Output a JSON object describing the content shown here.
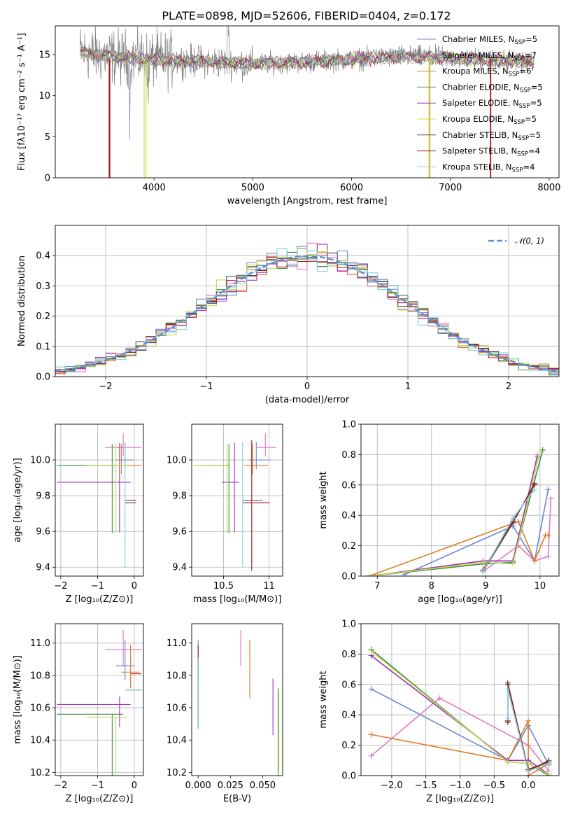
{
  "figure_title": "PLATE=0898, MJD=52606, FIBERID=0404, z=0.172",
  "colors": {
    "Chabrier MILES": "#6a87d6",
    "Salpeter MILES": "#e377c2",
    "Kroupa MILES": "#e07b25",
    "Chabrier ELODIE": "#3f8a4f",
    "Salpeter ELODIE": "#9b2fb5",
    "Kroupa ELODIE": "#c5df4f",
    "Chabrier STELIB": "#505050",
    "Salpeter STELIB": "#a01717",
    "Kroupa STELIB": "#7fd1d8",
    "data": "#808080",
    "normal": "#5b8fd9"
  },
  "chart_data": [
    {
      "id": "spectrum",
      "type": "line",
      "title": "PLATE=0898, MJD=52606, FIBERID=0404, z=0.172",
      "xlabel": "wavelength [Angstrom, rest frame]",
      "ylabel": "Flux [fλ10⁻¹⁷ erg cm⁻² s⁻¹ A⁻¹]",
      "xlim": [
        3000,
        8100
      ],
      "ylim": [
        0,
        18.5
      ],
      "xticks": [
        4000,
        5000,
        6000,
        7000,
        8000
      ],
      "yticks": [
        0,
        5,
        10,
        15
      ],
      "legend_position": "upper-right",
      "series": [
        {
          "name": "Chabrier MILES",
          "nssp": "5"
        },
        {
          "name": "Salpeter MILES",
          "nssp": "7"
        },
        {
          "name": "Kroupa MILES",
          "nssp": "6"
        },
        {
          "name": "Chabrier ELODIE",
          "nssp": "5"
        },
        {
          "name": "Salpeter ELODIE",
          "nssp": "5"
        },
        {
          "name": "Kroupa ELODIE",
          "nssp": "5"
        },
        {
          "name": "Chabrier STELIB",
          "nssp": "5"
        },
        {
          "name": "Salpeter STELIB",
          "nssp": "4"
        },
        {
          "name": "Kroupa STELIB",
          "nssp": "4"
        }
      ],
      "drops": [
        {
          "series": "Salpeter STELIB",
          "x": [
            3545,
            3553
          ],
          "note": "model drops to zero below ~3550"
        },
        {
          "series": "Kroupa ELODIE",
          "x": [
            3900,
            3920
          ]
        },
        {
          "series": "Kroupa MILES",
          "x": [
            6785,
            6790
          ]
        },
        {
          "series": "Kroupa ELODIE",
          "x": [
            6790,
            6795
          ]
        },
        {
          "series": "Salpeter STELIB",
          "x": [
            7405,
            7410
          ]
        }
      ],
      "data_range": [
        3250,
        7850
      ],
      "continuum": [
        [
          3250,
          15.3
        ],
        [
          3600,
          14.7
        ],
        [
          4000,
          14.4
        ],
        [
          4500,
          14.2
        ],
        [
          5000,
          13.9
        ],
        [
          5500,
          14.1
        ],
        [
          6000,
          14.4
        ],
        [
          6500,
          14.8
        ],
        [
          7000,
          14.6
        ],
        [
          7500,
          14.3
        ],
        [
          7850,
          14.2
        ]
      ]
    },
    {
      "id": "residual-histogram",
      "type": "step",
      "xlabel": "(data-model)/error",
      "ylabel": "Normed distribution",
      "xlim": [
        -2.5,
        2.5
      ],
      "ylim": [
        0,
        0.5
      ],
      "xticks": [
        -2,
        -1,
        0,
        1,
        2
      ],
      "yticks": [
        0,
        0.1,
        0.2,
        0.3,
        0.4
      ],
      "grid": true,
      "bin_width": 0.1,
      "legend": [
        {
          "label": "𝒩(0, 1)",
          "style": "dashed"
        }
      ],
      "legend_position": "upper-right"
    },
    {
      "id": "age-vs-Z",
      "type": "errorbar",
      "xlabel": "Z [log₁₀(Z/Z⊙)]",
      "ylabel": "age  [log₁₀(age/yr)]",
      "xlim": [
        -2.15,
        0.25
      ],
      "ylim": [
        9.35,
        10.2
      ],
      "xticks": [
        -2,
        -1,
        0
      ],
      "yticks": [
        9.4,
        9.6,
        9.8,
        10.0
      ],
      "grid": true,
      "points": [
        {
          "series": "Chabrier MILES",
          "x": -0.25,
          "xerr": [
            0.25,
            0.25
          ],
          "y": 10.0,
          "yerr": [
            0.05,
            0.1
          ]
        },
        {
          "series": "Salpeter MILES",
          "x": -0.3,
          "xerr": [
            0.5,
            0.5
          ],
          "y": 10.07,
          "yerr": [
            0.05,
            0.08
          ]
        },
        {
          "series": "Kroupa MILES",
          "x": -0.35,
          "xerr": [
            0.55,
            0.55
          ],
          "y": 9.97,
          "yerr": [
            0.05,
            0.12
          ]
        },
        {
          "series": "Chabrier ELODIE",
          "x": -0.6,
          "xerr": [
            1.5,
            0.3
          ],
          "y": 9.97,
          "yerr": [
            0.38,
            0.12
          ]
        },
        {
          "series": "Salpeter ELODIE",
          "x": -0.4,
          "xerr": [
            1.7,
            0.3
          ],
          "y": 9.875,
          "yerr": [
            0.28,
            0.22
          ]
        },
        {
          "series": "Kroupa ELODIE",
          "x": -0.5,
          "xerr": [
            0.8,
            0.3
          ],
          "y": 9.97,
          "yerr": [
            0.38,
            0.12
          ]
        },
        {
          "series": "Chabrier STELIB",
          "x": -0.25,
          "xerr": [
            0.0,
            0.3
          ],
          "y": 9.775,
          "yerr": [
            0.0,
            0.0
          ]
        },
        {
          "series": "Salpeter STELIB",
          "x": -0.25,
          "xerr": [
            0.0,
            0.3
          ],
          "y": 9.76,
          "yerr": [
            0.0,
            0.0
          ]
        },
        {
          "series": "Kroupa STELIB",
          "x": -0.25,
          "xerr": [
            0.0,
            0.0
          ],
          "y": 9.7,
          "yerr": [
            0.3,
            0.4
          ]
        }
      ]
    },
    {
      "id": "age-vs-mass",
      "type": "errorbar",
      "xlabel": "mass [log₁₀(M/M⊙)]",
      "ylabel": "",
      "xlim": [
        10.15,
        11.15
      ],
      "ylim": [
        9.35,
        10.2
      ],
      "xticks": [
        10.5,
        11.0
      ],
      "yticks": [
        9.4,
        9.6,
        9.8,
        10.0
      ],
      "grid": true,
      "points": [
        {
          "series": "Chabrier MILES",
          "x": 10.86,
          "xerr": [
            0.09,
            0.16
          ],
          "y": 10.0,
          "yerr": [
            0.05,
            0.1
          ]
        },
        {
          "series": "Salpeter MILES",
          "x": 10.96,
          "xerr": [
            0.1,
            0.12
          ],
          "y": 10.07,
          "yerr": [
            0.05,
            0.08
          ]
        },
        {
          "series": "Kroupa MILES",
          "x": 10.82,
          "xerr": [
            0.1,
            0.17
          ],
          "y": 9.97,
          "yerr": [
            0.05,
            0.12
          ]
        },
        {
          "series": "Chabrier ELODIE",
          "x": 10.56,
          "xerr": [
            0.38,
            0.0
          ],
          "y": 9.97,
          "yerr": [
            0.38,
            0.12
          ]
        },
        {
          "series": "Salpeter ELODIE",
          "x": 10.62,
          "xerr": [
            0.14,
            0.05
          ],
          "y": 9.875,
          "yerr": [
            0.28,
            0.22
          ]
        },
        {
          "series": "Kroupa ELODIE",
          "x": 10.54,
          "xerr": [
            0.37,
            0.0
          ],
          "y": 9.97,
          "yerr": [
            0.38,
            0.12
          ]
        },
        {
          "series": "Chabrier STELIB",
          "x": 10.71,
          "xerr": [
            0.0,
            0.22
          ],
          "y": 9.775,
          "yerr": [
            0.0,
            0.0
          ]
        },
        {
          "series": "Salpeter STELIB",
          "x": 10.81,
          "xerr": [
            0.1,
            0.2
          ],
          "y": 9.76,
          "yerr": [
            0.38,
            0.35
          ]
        },
        {
          "series": "Kroupa STELIB",
          "x": 10.71,
          "xerr": [
            0.0,
            0.0
          ],
          "y": 9.7,
          "yerr": [
            0.3,
            0.4
          ]
        }
      ]
    },
    {
      "id": "mass-weight-vs-age",
      "type": "line",
      "xlabel": "age  [log₁₀(age/yr)]",
      "ylabel": "mass weight",
      "xlim": [
        6.7,
        10.35
      ],
      "ylim": [
        0,
        1.0
      ],
      "xticks": [
        7,
        8,
        9,
        10
      ],
      "yticks": [
        0,
        0.2,
        0.4,
        0.6,
        0.8,
        1.0
      ],
      "grid": true,
      "series": [
        {
          "name": "Chabrier MILES",
          "x": [
            7.5,
            9.5,
            9.9,
            10.15
          ],
          "y": [
            0.01,
            0.33,
            0.1,
            0.57
          ]
        },
        {
          "name": "Salpeter MILES",
          "x": [
            8.95,
            9.6,
            9.9,
            10.15,
            10.2
          ],
          "y": [
            0.03,
            0.2,
            0.1,
            0.13,
            0.51
          ]
        },
        {
          "name": "Kroupa MILES",
          "x": [
            6.85,
            9.6,
            9.9,
            10.1,
            10.15
          ],
          "y": [
            0.0,
            0.36,
            0.1,
            0.27,
            0.27
          ]
        },
        {
          "name": "Chabrier ELODIE",
          "x": [
            6.85,
            8.95,
            9.5,
            10.05
          ],
          "y": [
            0.0,
            0.08,
            0.09,
            0.83
          ]
        },
        {
          "name": "Salpeter ELODIE",
          "x": [
            6.85,
            8.95,
            9.5,
            9.95
          ],
          "y": [
            0.0,
            0.1,
            0.1,
            0.79
          ]
        },
        {
          "name": "Kroupa ELODIE",
          "x": [
            6.85,
            8.95,
            9.5,
            10.0
          ],
          "y": [
            0.0,
            0.09,
            0.08,
            0.82
          ]
        },
        {
          "name": "Chabrier STELIB",
          "x": [
            8.95,
            9.5,
            9.9
          ],
          "y": [
            0.03,
            0.35,
            0.61
          ]
        },
        {
          "name": "Salpeter STELIB",
          "x": [
            8.95,
            9.5,
            9.9
          ],
          "y": [
            0.04,
            0.36,
            0.6
          ]
        },
        {
          "name": "Kroupa STELIB",
          "x": [
            8.95,
            9.5,
            9.9
          ],
          "y": [
            0.03,
            0.38,
            0.57
          ]
        }
      ]
    },
    {
      "id": "mass-vs-Z",
      "type": "errorbar",
      "xlabel": "Z [log₁₀(Z/Z⊙)]",
      "ylabel": "mass [log₁₀(M/M⊙)]",
      "xlim": [
        -2.15,
        0.25
      ],
      "ylim": [
        10.18,
        11.12
      ],
      "xticks": [
        -2,
        -1,
        0
      ],
      "yticks": [
        10.2,
        10.4,
        10.6,
        10.8,
        11.0
      ],
      "grid": true,
      "points": [
        {
          "series": "Chabrier MILES",
          "x": -0.25,
          "xerr": [
            0.25,
            0.25
          ],
          "y": 10.86,
          "yerr": [
            0.09,
            0.16
          ]
        },
        {
          "series": "Salpeter MILES",
          "x": -0.3,
          "xerr": [
            0.5,
            0.5
          ],
          "y": 10.96,
          "yerr": [
            0.1,
            0.12
          ]
        },
        {
          "series": "Kroupa MILES",
          "x": -0.1,
          "xerr": [
            0.25,
            0.25
          ],
          "y": 10.82,
          "yerr": [
            0.1,
            0.17
          ]
        },
        {
          "series": "Chabrier ELODIE",
          "x": -0.6,
          "xerr": [
            1.5,
            0.3
          ],
          "y": 10.56,
          "yerr": [
            0.38,
            0.0
          ]
        },
        {
          "series": "Salpeter ELODIE",
          "x": -0.4,
          "xerr": [
            1.7,
            0.3
          ],
          "y": 10.62,
          "yerr": [
            0.14,
            0.05
          ]
        },
        {
          "series": "Kroupa ELODIE",
          "x": -0.5,
          "xerr": [
            0.8,
            0.3
          ],
          "y": 10.54,
          "yerr": [
            0.37,
            0.0
          ]
        },
        {
          "series": "Chabrier STELIB",
          "x": 0.0,
          "xerr": [
            0.25,
            0.2
          ],
          "y": 10.71,
          "yerr": [
            0.0,
            0.0
          ]
        },
        {
          "series": "Salpeter STELIB",
          "x": 0.0,
          "xerr": [
            0.1,
            0.2
          ],
          "y": 10.81,
          "yerr": [
            0.0,
            0.0
          ]
        },
        {
          "series": "Kroupa STELIB",
          "x": 0.0,
          "xerr": [
            0.25,
            0.2
          ],
          "y": 10.71,
          "yerr": [
            0.0,
            0.0
          ]
        }
      ]
    },
    {
      "id": "mass-vs-EBV",
      "type": "errorbar",
      "xlabel": "E(B-V)",
      "ylabel": "",
      "xlim": [
        -0.005,
        0.0655
      ],
      "ylim": [
        10.18,
        11.12
      ],
      "xticks": [
        0.0,
        0.025,
        0.05
      ],
      "tick_labels": [
        "0.000",
        "0.025",
        "0.050"
      ],
      "yticks": [
        10.2,
        10.4,
        10.6,
        10.8,
        11.0
      ],
      "grid": false,
      "points": [
        {
          "series": "Chabrier MILES",
          "x": 0.0,
          "y": 10.86,
          "yerr": [
            0.09,
            0.16
          ]
        },
        {
          "series": "Salpeter MILES",
          "x": 0.033,
          "y": 10.96,
          "yerr": [
            0.1,
            0.12
          ]
        },
        {
          "series": "Kroupa MILES",
          "x": 0.04,
          "y": 10.82,
          "yerr": [
            0.16,
            0.2
          ]
        },
        {
          "series": "Chabrier ELODIE",
          "x": 0.062,
          "y": 10.56,
          "yerr": [
            0.38,
            0.16
          ]
        },
        {
          "series": "Salpeter ELODIE",
          "x": 0.058,
          "y": 10.62,
          "yerr": [
            0.19,
            0.16
          ]
        },
        {
          "series": "Kroupa ELODIE",
          "x": 0.0625,
          "y": 10.54,
          "yerr": [
            0.33,
            0.17
          ]
        },
        {
          "series": "Chabrier STELIB",
          "x": 0.0,
          "y": 10.71,
          "yerr": [
            0.24,
            0.2
          ]
        },
        {
          "series": "Salpeter STELIB",
          "x": 0.0,
          "y": 10.81,
          "yerr": [
            0.3,
            0.18
          ]
        },
        {
          "series": "Kroupa STELIB",
          "x": 0.0,
          "y": 10.71,
          "yerr": [
            0.24,
            0.2
          ]
        }
      ]
    },
    {
      "id": "mass-weight-vs-Z",
      "type": "line",
      "xlabel": "Z [log₁₀(Z/Z⊙)]",
      "ylabel": "mass weight",
      "xlim": [
        -2.45,
        0.45
      ],
      "ylim": [
        0,
        1.0
      ],
      "xticks": [
        -2.0,
        -1.5,
        -1.0,
        -0.5,
        0.0
      ],
      "tick_labels": [
        "−2.0",
        "−1.5",
        "−1.0",
        "−0.5",
        "0.0"
      ],
      "yticks": [
        0,
        0.2,
        0.4,
        0.6,
        0.8,
        1.0
      ],
      "grid": true,
      "series": [
        {
          "name": "Chabrier MILES",
          "x": [
            -2.3,
            -0.3,
            0.0,
            0.3
          ],
          "y": [
            0.57,
            0.1,
            0.33,
            0.07
          ]
        },
        {
          "name": "Salpeter MILES",
          "x": [
            -2.3,
            -1.3,
            0.0,
            0.3
          ],
          "y": [
            0.13,
            0.51,
            0.2,
            0.03
          ]
        },
        {
          "name": "Kroupa MILES",
          "x": [
            -2.3,
            -0.3,
            0.0,
            0.0,
            0.3
          ],
          "y": [
            0.27,
            0.1,
            0.36,
            0.0,
            0.08
          ]
        },
        {
          "name": "Chabrier ELODIE",
          "x": [
            -2.3,
            -0.3,
            0.0,
            0.3
          ],
          "y": [
            0.83,
            0.09,
            0.08,
            0.0
          ]
        },
        {
          "name": "Salpeter ELODIE",
          "x": [
            -2.3,
            -0.3,
            0.0,
            0.3
          ],
          "y": [
            0.79,
            0.1,
            0.1,
            0.01
          ]
        },
        {
          "name": "Kroupa ELODIE",
          "x": [
            -2.3,
            -0.3,
            0.0,
            0.3
          ],
          "y": [
            0.82,
            0.09,
            0.08,
            0.01
          ]
        },
        {
          "name": "Chabrier STELIB",
          "x": [
            -0.3,
            -0.3,
            0.0,
            0.3
          ],
          "y": [
            0.35,
            0.61,
            0.03,
            0.1
          ]
        },
        {
          "name": "Salpeter STELIB",
          "x": [
            -0.3,
            -0.3,
            0.0,
            0.3
          ],
          "y": [
            0.36,
            0.6,
            0.04,
            0.09
          ]
        },
        {
          "name": "Kroupa STELIB",
          "x": [
            -0.3,
            -0.3,
            0.0,
            0.3
          ],
          "y": [
            0.38,
            0.57,
            0.03,
            0.08
          ]
        }
      ]
    }
  ]
}
